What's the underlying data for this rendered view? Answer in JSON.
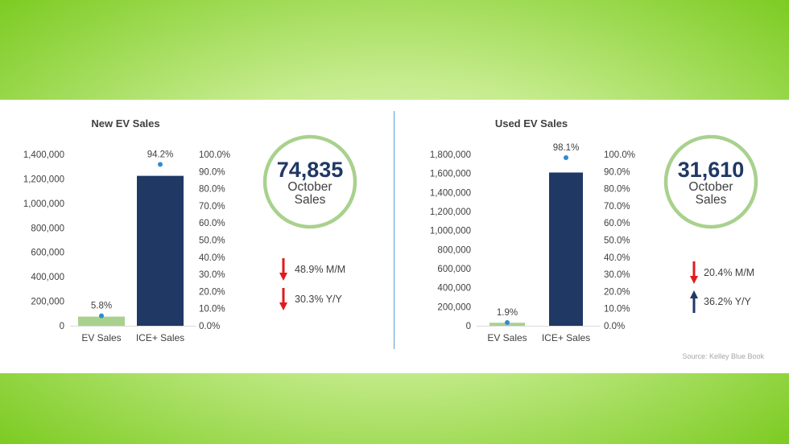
{
  "panels": [
    {
      "chart_data": {
        "type": "bar",
        "title": "New EV Sales",
        "categories": [
          "EV Sales",
          "ICE+ Sales"
        ],
        "values": [
          74835,
          1225000
        ],
        "shares": [
          5.8,
          94.2
        ],
        "share_labels": [
          "5.8%",
          "94.2%"
        ],
        "ylim": [
          0,
          1400000
        ],
        "yticks": [
          "1,400,000",
          "1,200,000",
          "1,000,000",
          "800,000",
          "600,000",
          "400,000",
          "200,000",
          "0"
        ],
        "y2lim": [
          0,
          100
        ],
        "y2ticks": [
          "100.0%",
          "90.0%",
          "80.0%",
          "70.0%",
          "60.0%",
          "50.0%",
          "40.0%",
          "30.0%",
          "20.0%",
          "10.0%",
          "0.0%"
        ],
        "bar_colors": [
          "#a9d18e",
          "#1f3864"
        ],
        "marker_color": "#2e8bd0"
      },
      "kpi": {
        "value": "74,835",
        "line1": "October",
        "line2": "Sales"
      },
      "changes": [
        {
          "direction": "down",
          "text": "48.9% M/M"
        },
        {
          "direction": "down",
          "text": "30.3% Y/Y"
        }
      ]
    },
    {
      "chart_data": {
        "type": "bar",
        "title": "Used EV Sales",
        "categories": [
          "EV Sales",
          "ICE+ Sales"
        ],
        "values": [
          31610,
          1610000
        ],
        "shares": [
          1.9,
          98.1
        ],
        "share_labels": [
          "1.9%",
          "98.1%"
        ],
        "ylim": [
          0,
          1800000
        ],
        "yticks": [
          "1,800,000",
          "1,600,000",
          "1,400,000",
          "1,200,000",
          "1,000,000",
          "800,000",
          "600,000",
          "400,000",
          "200,000",
          "0"
        ],
        "y2lim": [
          0,
          100
        ],
        "y2ticks": [
          "100.0%",
          "90.0%",
          "80.0%",
          "70.0%",
          "60.0%",
          "50.0%",
          "40.0%",
          "30.0%",
          "20.0%",
          "10.0%",
          "0.0%"
        ],
        "bar_colors": [
          "#a9d18e",
          "#1f3864"
        ],
        "marker_color": "#2e8bd0"
      },
      "kpi": {
        "value": "31,610",
        "line1": "October",
        "line2": "Sales"
      },
      "changes": [
        {
          "direction": "down",
          "text": "20.4% M/M"
        },
        {
          "direction": "up",
          "text": "36.2% Y/Y"
        }
      ]
    }
  ],
  "source": "Source: Kelley Blue Book",
  "colors": {
    "down_arrow": "#e31a1c",
    "up_arrow": "#1f3864",
    "ring": "#a9d18e",
    "kpi_value": "#1f3864"
  }
}
